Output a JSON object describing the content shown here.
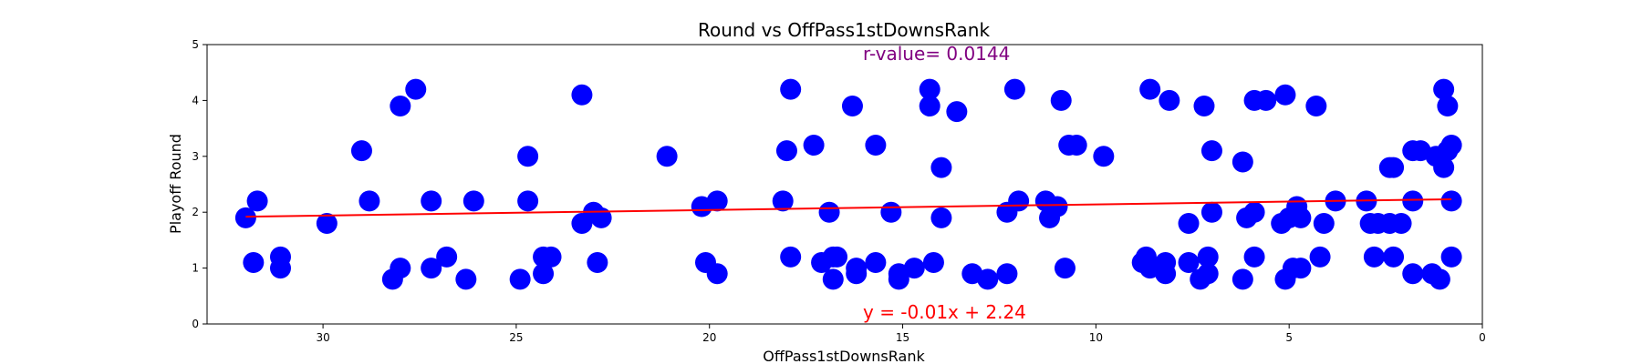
{
  "chart_data": {
    "type": "scatter",
    "title": "Round vs OffPass1stDownsRank",
    "xlabel": "OffPass1stDownsRank",
    "ylabel": "Playoff Round",
    "xlim": [
      33,
      0
    ],
    "ylim": [
      0,
      5
    ],
    "x_ticks": [
      30,
      25,
      20,
      15,
      10,
      5,
      0
    ],
    "y_ticks": [
      0,
      1,
      2,
      3,
      4,
      5
    ],
    "grid": false,
    "point_color": "#0000ff",
    "fit_color": "#ff0000",
    "annotation_color": "#800080",
    "r_value_label": "r-value= 0.0144",
    "equation_label": "y = -0.01x + 2.24",
    "fit_line": {
      "slope": -0.01,
      "intercept": 2.24,
      "x_range": [
        32,
        0.8
      ]
    },
    "points": [
      [
        32,
        1.9
      ],
      [
        31.8,
        1.1
      ],
      [
        31.7,
        2.2
      ],
      [
        31.1,
        1.2
      ],
      [
        31.1,
        1.0
      ],
      [
        29.9,
        1.8
      ],
      [
        29,
        3.1
      ],
      [
        28.8,
        2.2
      ],
      [
        28.2,
        0.8
      ],
      [
        28,
        3.9
      ],
      [
        28,
        1.0
      ],
      [
        27.6,
        4.2
      ],
      [
        27.2,
        2.2
      ],
      [
        27.2,
        1.0
      ],
      [
        26.8,
        1.2
      ],
      [
        26.3,
        0.8
      ],
      [
        26.1,
        2.2
      ],
      [
        24.9,
        0.8
      ],
      [
        24.7,
        3.0
      ],
      [
        24.7,
        2.2
      ],
      [
        24.3,
        1.2
      ],
      [
        24.3,
        0.9
      ],
      [
        24.1,
        1.2
      ],
      [
        23.3,
        4.1
      ],
      [
        23.3,
        1.8
      ],
      [
        23,
        2.0
      ],
      [
        22.9,
        1.1
      ],
      [
        22.8,
        1.9
      ],
      [
        21.1,
        3.0
      ],
      [
        20.2,
        2.1
      ],
      [
        20.1,
        1.1
      ],
      [
        19.8,
        2.2
      ],
      [
        19.8,
        0.9
      ],
      [
        18.1,
        2.2
      ],
      [
        18,
        3.1
      ],
      [
        17.9,
        4.2
      ],
      [
        17.9,
        1.2
      ],
      [
        17.3,
        3.2
      ],
      [
        17.1,
        1.1
      ],
      [
        16.9,
        2.0
      ],
      [
        16.8,
        1.2
      ],
      [
        16.8,
        0.8
      ],
      [
        16.7,
        1.2
      ],
      [
        16.3,
        3.9
      ],
      [
        16.2,
        1.0
      ],
      [
        16.2,
        0.9
      ],
      [
        15.7,
        3.2
      ],
      [
        15.7,
        1.1
      ],
      [
        15.3,
        2.0
      ],
      [
        15.1,
        0.9
      ],
      [
        15.1,
        0.8
      ],
      [
        14.7,
        1.0
      ],
      [
        14.3,
        4.2
      ],
      [
        14.3,
        3.9
      ],
      [
        14.2,
        1.1
      ],
      [
        14,
        2.8
      ],
      [
        14,
        1.9
      ],
      [
        13.6,
        3.8
      ],
      [
        13.2,
        0.9
      ],
      [
        12.8,
        0.8
      ],
      [
        12.3,
        2.0
      ],
      [
        12.3,
        0.9
      ],
      [
        12.1,
        4.2
      ],
      [
        12,
        2.2
      ],
      [
        11.3,
        2.2
      ],
      [
        11.2,
        1.9
      ],
      [
        11,
        2.1
      ],
      [
        10.9,
        4.0
      ],
      [
        10.8,
        1.0
      ],
      [
        10.7,
        3.2
      ],
      [
        10.5,
        3.2
      ],
      [
        9.8,
        3.0
      ],
      [
        8.8,
        1.1
      ],
      [
        8.7,
        1.2
      ],
      [
        8.6,
        4.2
      ],
      [
        8.6,
        1.0
      ],
      [
        8.2,
        1.1
      ],
      [
        8.2,
        0.9
      ],
      [
        8.1,
        4.0
      ],
      [
        7.6,
        1.8
      ],
      [
        7.6,
        1.1
      ],
      [
        7.3,
        0.8
      ],
      [
        7.2,
        3.9
      ],
      [
        7.1,
        1.2
      ],
      [
        7.1,
        0.9
      ],
      [
        7,
        3.1
      ],
      [
        7,
        2.0
      ],
      [
        6.2,
        2.9
      ],
      [
        6.2,
        0.8
      ],
      [
        6.1,
        1.9
      ],
      [
        5.9,
        2.0
      ],
      [
        5.9,
        4.0
      ],
      [
        5.9,
        1.2
      ],
      [
        5.6,
        4.0
      ],
      [
        5.2,
        1.8
      ],
      [
        5.1,
        4.1
      ],
      [
        5.1,
        0.8
      ],
      [
        5,
        1.9
      ],
      [
        4.9,
        1.0
      ],
      [
        4.8,
        2.1
      ],
      [
        4.7,
        1.9
      ],
      [
        4.7,
        1.0
      ],
      [
        4.3,
        3.9
      ],
      [
        4.2,
        1.2
      ],
      [
        4.1,
        1.8
      ],
      [
        3.8,
        2.2
      ],
      [
        3,
        2.2
      ],
      [
        2.9,
        1.8
      ],
      [
        2.8,
        1.2
      ],
      [
        2.7,
        1.8
      ],
      [
        2.4,
        2.8
      ],
      [
        2.4,
        1.8
      ],
      [
        2.3,
        2.8
      ],
      [
        2.3,
        1.2
      ],
      [
        2.1,
        1.8
      ],
      [
        1.8,
        3.1
      ],
      [
        1.8,
        2.2
      ],
      [
        1.8,
        0.9
      ],
      [
        1.6,
        3.1
      ],
      [
        1.3,
        0.9
      ],
      [
        1.2,
        3.0
      ],
      [
        1.1,
        0.8
      ],
      [
        1,
        2.8
      ],
      [
        1,
        4.2
      ],
      [
        0.9,
        3.1
      ],
      [
        0.9,
        3.9
      ],
      [
        0.8,
        3.2
      ],
      [
        0.8,
        2.2
      ],
      [
        0.8,
        1.2
      ]
    ]
  }
}
